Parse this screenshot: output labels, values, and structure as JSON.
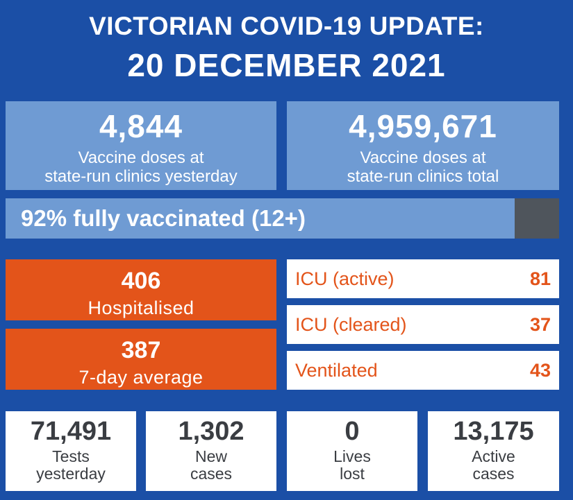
{
  "header": {
    "title_line1": "VICTORIAN COVID-19 UPDATE:",
    "title_line2": "20 DECEMBER 2021"
  },
  "vaccines": [
    {
      "value": "4,844",
      "label_line1": "Vaccine doses at",
      "label_line2": "state-run clinics yesterday"
    },
    {
      "value": "4,959,671",
      "label_line1": "Vaccine doses at",
      "label_line2": "state-run clinics total"
    }
  ],
  "progress": {
    "label": "92% fully vaccinated (12+)",
    "fill_percent": 92
  },
  "hospital": {
    "hospitalised_value": "406",
    "hospitalised_label": "Hospitalised",
    "average_value": "387",
    "average_label": "7-day average"
  },
  "icu": [
    {
      "label": "ICU (active)",
      "value": "81"
    },
    {
      "label": "ICU (cleared)",
      "value": "37"
    },
    {
      "label": "Ventilated",
      "value": "43"
    }
  ],
  "stats": [
    {
      "value": "71,491",
      "label_line1": "Tests",
      "label_line2": "yesterday"
    },
    {
      "value": "1,302",
      "label_line1": "New",
      "label_line2": "cases"
    },
    {
      "value": "0",
      "label_line1": "Lives",
      "label_line2": "lost"
    },
    {
      "value": "13,175",
      "label_line1": "Active",
      "label_line2": "cases"
    }
  ],
  "colors": {
    "background": "#1b4fa6",
    "light_blue": "#6f9bd3",
    "orange": "#e3541a",
    "dark_grey": "#4f555c",
    "stat_text": "#3a3d42"
  }
}
